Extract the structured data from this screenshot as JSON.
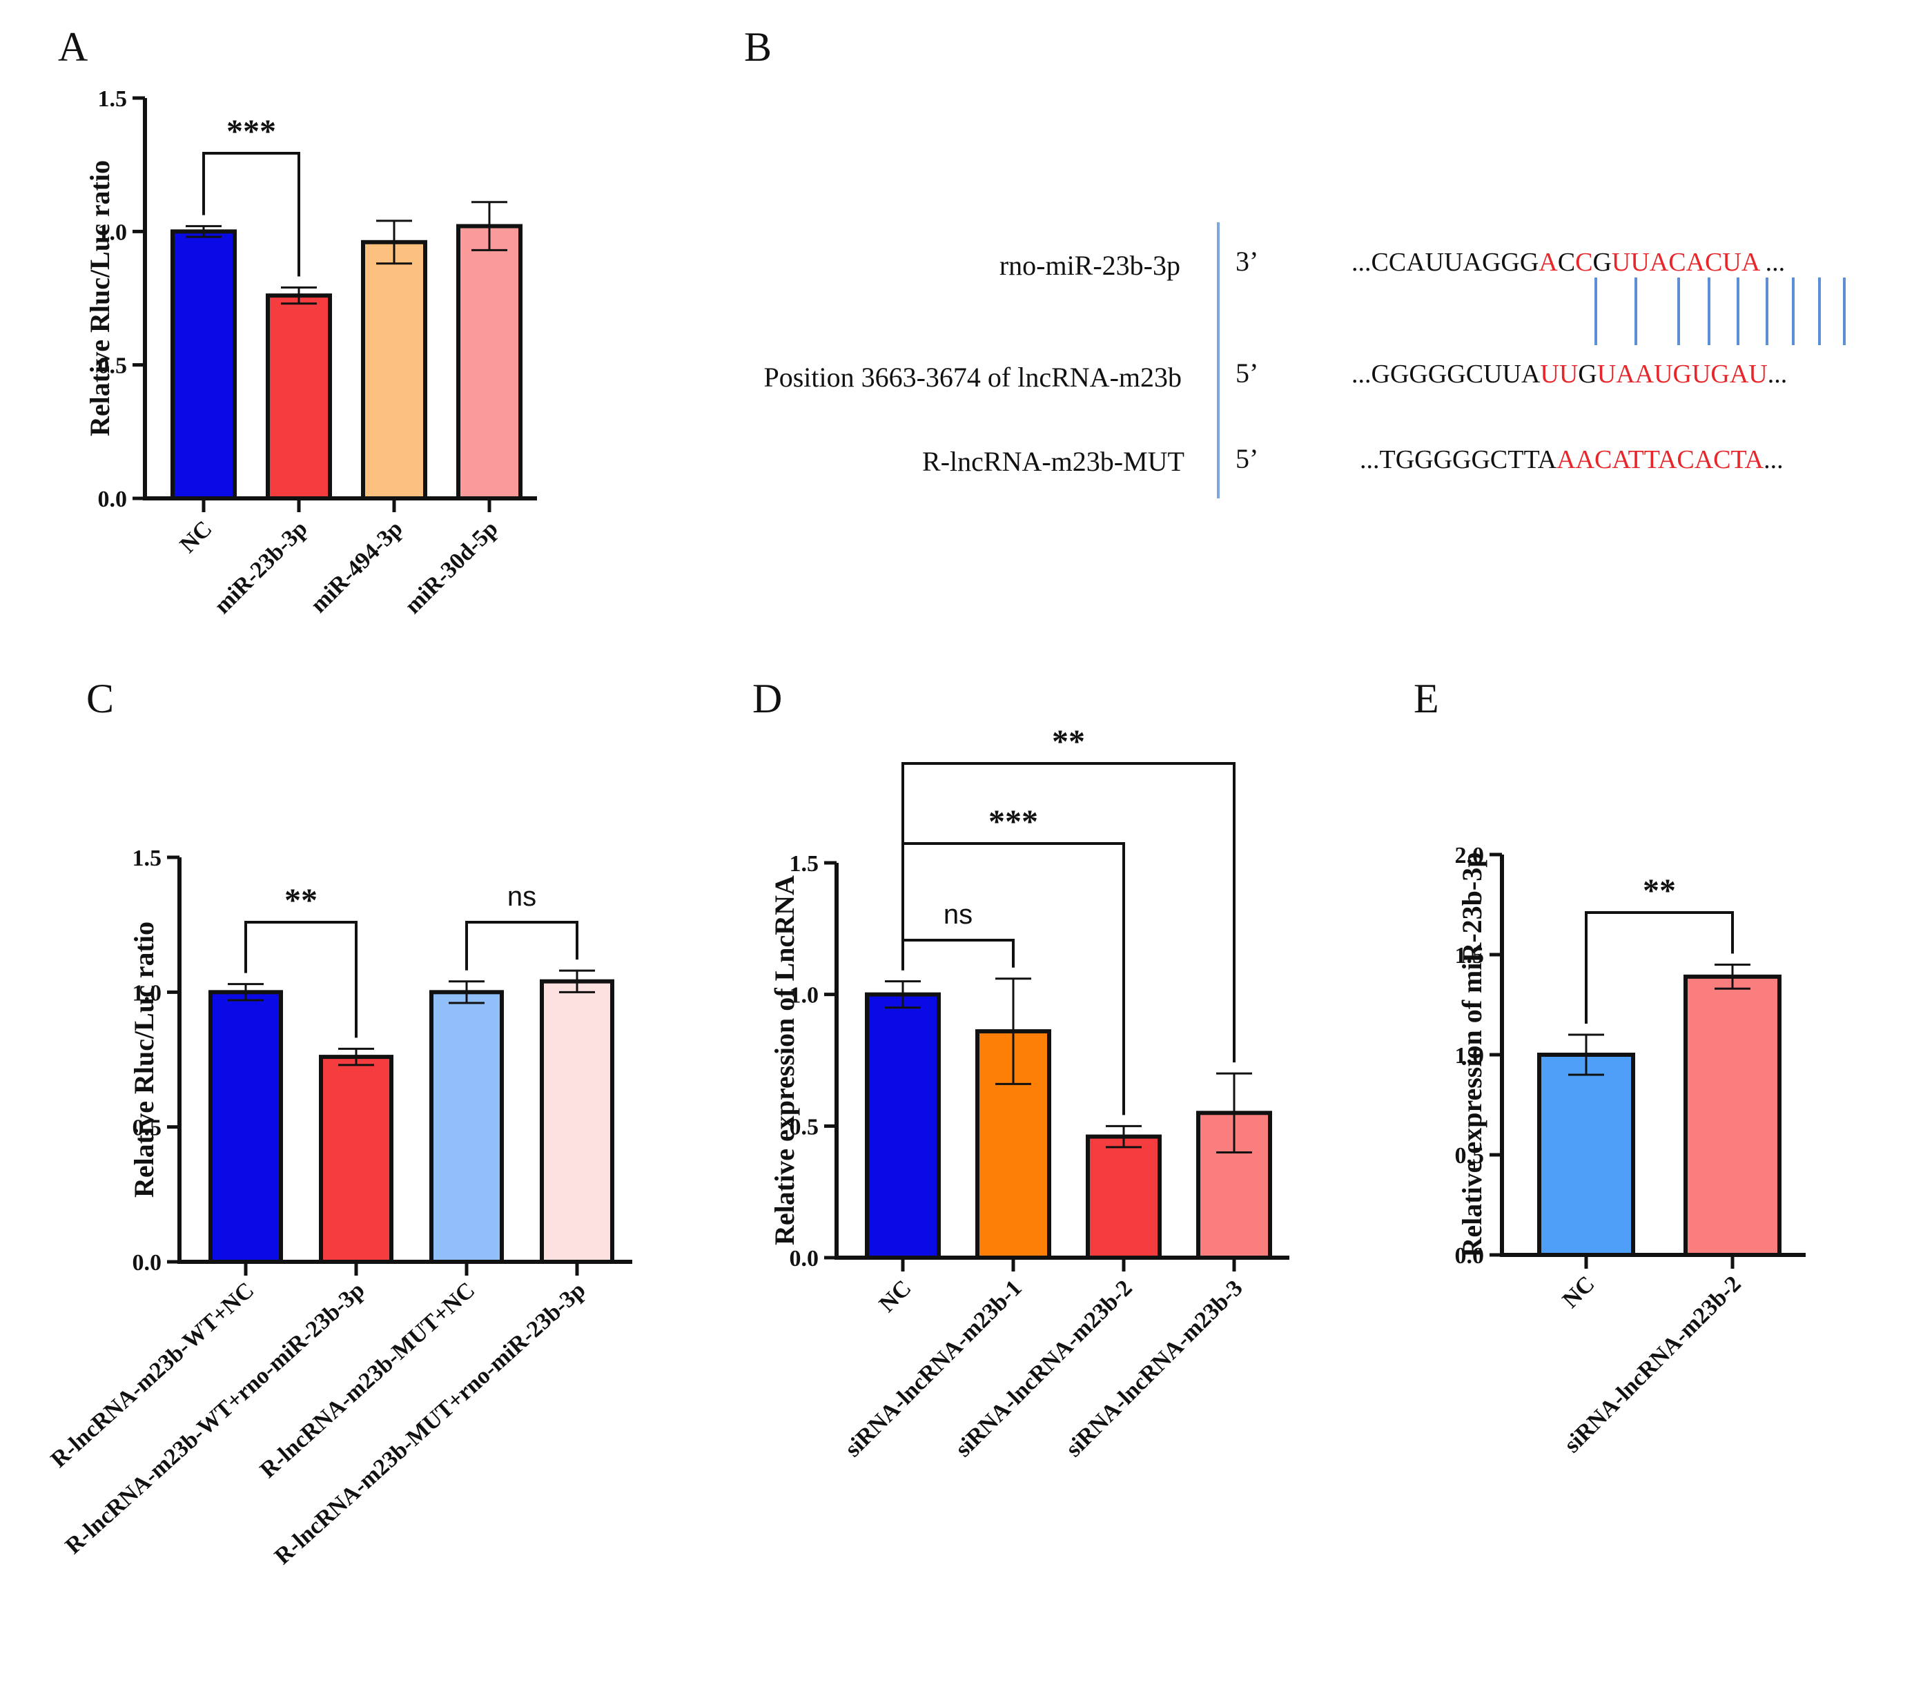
{
  "colors": {
    "axis": "#111111",
    "pair_line": "#5b8fd6",
    "mismatch": "#e8262a",
    "divider": "#7fa6dd"
  },
  "panels": {
    "A": {
      "letter": "A"
    },
    "B": {
      "letter": "B"
    },
    "C": {
      "letter": "C"
    },
    "D": {
      "letter": "D"
    },
    "E": {
      "letter": "E"
    }
  },
  "chart_data": [
    {
      "id": "A",
      "type": "bar",
      "title": "",
      "xlabel": "",
      "ylabel": "Relative Rluc/Luc ratio",
      "ylim": [
        0,
        1.5
      ],
      "yticks": [
        0.0,
        0.5,
        1.0,
        1.5
      ],
      "ytick_labels": [
        "0.0",
        "0.5",
        "1.0",
        "1.5"
      ],
      "categories": [
        "NC",
        "miR-23b-3p",
        "miR-494-3p",
        "miR-30d-5p"
      ],
      "values": [
        1.0,
        0.76,
        0.96,
        1.02
      ],
      "errors": [
        0.02,
        0.03,
        0.08,
        0.09
      ],
      "colors": [
        "#0a0ae6",
        "#f53d3f",
        "#fcc07f",
        "#fb9a9a"
      ],
      "significance": [
        {
          "from": 0,
          "to": 1,
          "label": "***"
        }
      ]
    },
    {
      "id": "C",
      "type": "bar",
      "title": "",
      "xlabel": "",
      "ylabel": "Relative Rluc/Luc ratio",
      "ylim": [
        0,
        1.5
      ],
      "yticks": [
        0.0,
        0.5,
        1.0,
        1.5
      ],
      "ytick_labels": [
        "0.0",
        "0.5",
        "1.0",
        "1.5"
      ],
      "categories": [
        "R-lncRNA-m23b-WT+NC",
        "R-lncRNA-m23b-WT+rno-miR-23b-3p",
        "R-lncRNA-m23b-MUT+NC",
        "R-lncRNA-m23b-MUT+rno-miR-23b-3p"
      ],
      "values": [
        1.0,
        0.76,
        1.0,
        1.04
      ],
      "errors": [
        0.03,
        0.03,
        0.04,
        0.04
      ],
      "colors": [
        "#0a0ae6",
        "#f53d3f",
        "#91bff9",
        "#fde0e0"
      ],
      "significance": [
        {
          "from": 0,
          "to": 1,
          "label": "**"
        },
        {
          "from": 2,
          "to": 3,
          "label": "ns"
        }
      ]
    },
    {
      "id": "D",
      "type": "bar",
      "title": "",
      "xlabel": "",
      "ylabel": "Relative expression of LncRNA",
      "ylim": [
        0,
        1.5
      ],
      "yticks": [
        0.0,
        0.5,
        1.0,
        1.5
      ],
      "ytick_labels": [
        "0.0",
        "0.5",
        "1.0",
        "1.5"
      ],
      "categories": [
        "NC",
        "siRNA-lncRNA-m23b-1",
        "siRNA-lncRNA-m23b-2",
        "siRNA-lncRNA-m23b-3"
      ],
      "values": [
        1.0,
        0.86,
        0.46,
        0.55
      ],
      "errors": [
        0.05,
        0.2,
        0.04,
        0.15
      ],
      "colors": [
        "#0a0ae6",
        "#fd7f08",
        "#f53d3f",
        "#fb7e7f"
      ],
      "significance": [
        {
          "from": 0,
          "to": 1,
          "label": "ns"
        },
        {
          "from": 0,
          "to": 2,
          "label": "***"
        },
        {
          "from": 0,
          "to": 3,
          "label": "**"
        }
      ]
    },
    {
      "id": "E",
      "type": "bar",
      "title": "",
      "xlabel": "",
      "ylabel": "Relative expression of miR-23b-3p",
      "ylim": [
        0,
        2.0
      ],
      "yticks": [
        0.0,
        0.5,
        1.0,
        1.5,
        2.0
      ],
      "ytick_labels": [
        "0.0",
        "0.5",
        "1.0",
        "1.5",
        "2.0"
      ],
      "categories": [
        "NC",
        "siRNA-lncRNA-m23b-2"
      ],
      "values": [
        1.0,
        1.39
      ],
      "errors": [
        0.1,
        0.06
      ],
      "colors": [
        "#4f9ef8",
        "#fb7e7f"
      ],
      "significance": [
        {
          "from": 0,
          "to": 1,
          "label": "**"
        }
      ]
    }
  ],
  "alignment": {
    "rows": [
      {
        "label": "rno-miR-23b-3p",
        "end": "3’",
        "prefix": "...CCAUUAGGG",
        "segments": [
          {
            "text": "A",
            "mismatch": true
          },
          {
            "text": "C",
            "mismatch": false
          },
          {
            "text": "C",
            "mismatch": true
          },
          {
            "text": "G",
            "mismatch": false
          },
          {
            "text": "UUACACUA",
            "mismatch": true
          }
        ],
        "suffix": " ..."
      },
      {
        "label": "Position 3663-3674 of lncRNA-m23b",
        "end": "5’",
        "prefix": "...GGGGGCUUA",
        "segments": [
          {
            "text": "UU",
            "mismatch": true
          },
          {
            "text": "G",
            "mismatch": false
          },
          {
            "text": "U",
            "mismatch": true
          },
          {
            "text": "AAUGUGAU",
            "mismatch": true
          }
        ],
        "suffix": "..."
      },
      {
        "label": "R-lncRNA-m23b-MUT",
        "end": "5’",
        "prefix": "...TGGGGGCTTA",
        "segments": [
          {
            "text": "AACATTACACTA",
            "mismatch": true
          }
        ],
        "suffix": "..."
      }
    ],
    "pairing_lines": 9
  }
}
